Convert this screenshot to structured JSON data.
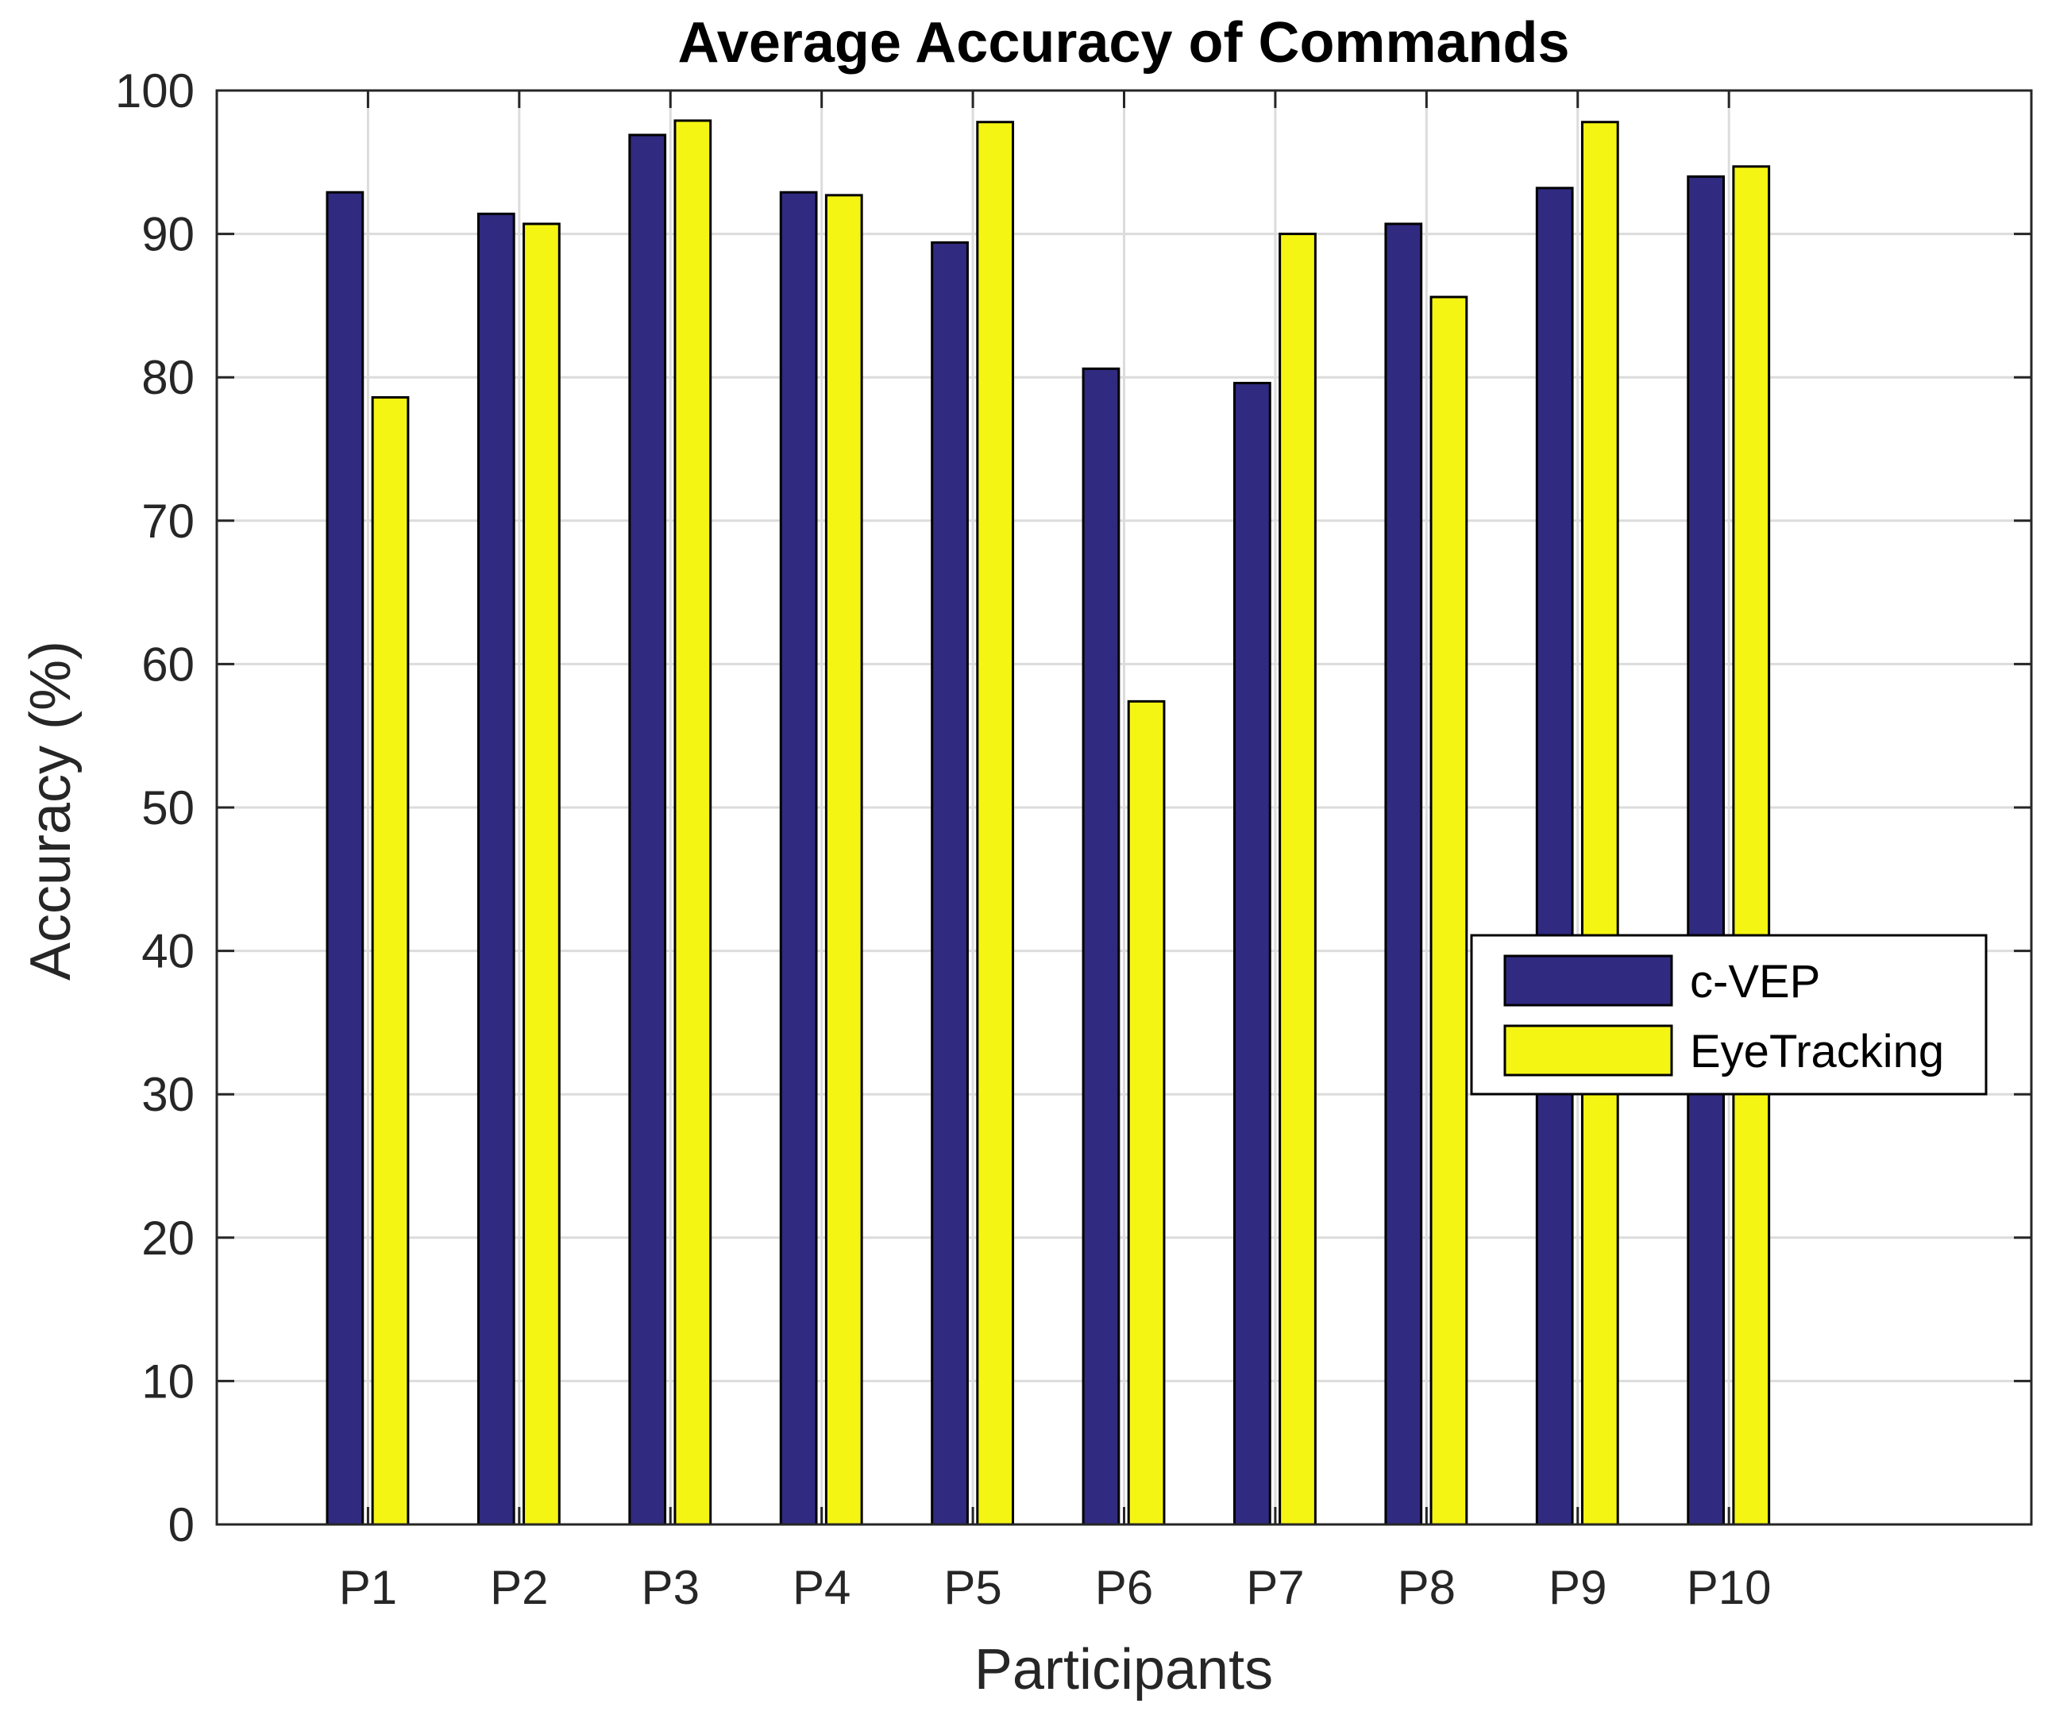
{
  "chart_data": {
    "type": "bar",
    "title": "Average Accuracy of Commands",
    "xlabel": "Participants",
    "ylabel": "Accuracy (%)",
    "categories": [
      "P1",
      "P2",
      "P3",
      "P4",
      "P5",
      "P6",
      "P7",
      "P8",
      "P9",
      "P10"
    ],
    "x_range": [
      0,
      12
    ],
    "ylim": [
      0,
      100
    ],
    "yticks": [
      0,
      10,
      20,
      30,
      40,
      50,
      60,
      70,
      80,
      90,
      100
    ],
    "ytick_labels": [
      "0",
      "10",
      "20",
      "30",
      "40",
      "50",
      "60",
      "70",
      "80",
      "90",
      "100"
    ],
    "grid": true,
    "legend_position": "right",
    "series": [
      {
        "name": "c-VEP",
        "color": "#302a80",
        "values": [
          92.9,
          91.4,
          96.9,
          92.9,
          89.4,
          80.6,
          79.6,
          90.7,
          93.2,
          94.0
        ]
      },
      {
        "name": "EyeTracking",
        "color": "#f5f513",
        "values": [
          78.6,
          90.7,
          97.9,
          92.7,
          97.8,
          57.4,
          90.0,
          85.6,
          97.8,
          94.7
        ]
      }
    ]
  }
}
